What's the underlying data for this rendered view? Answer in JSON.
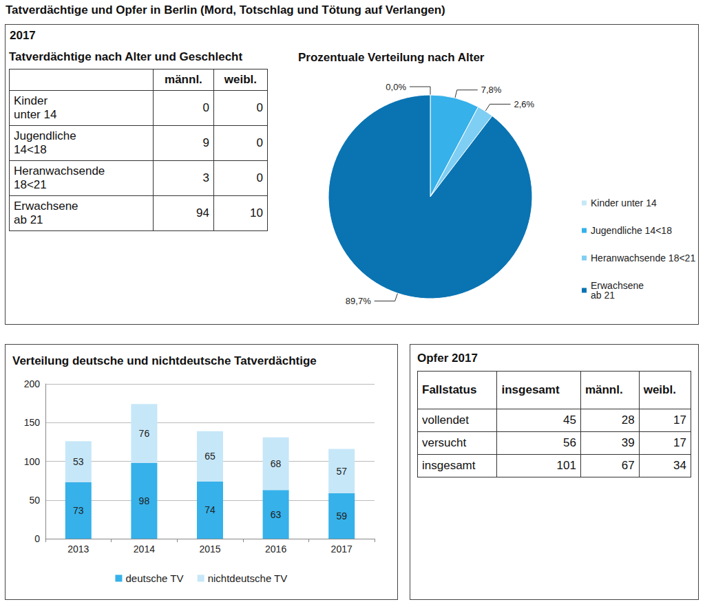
{
  "title": "Tatverdächtige und Opfer in Berlin (Mord, Totschlag und Tötung auf Verlangen)",
  "section_2017": {
    "year_label": "2017",
    "suspects_table": {
      "title": "Tatverdächtige nach Alter und Geschlecht",
      "columns": [
        "männl.",
        "weibl."
      ],
      "rows": [
        {
          "label": "Kinder\nunter 14",
          "values": [
            0,
            0
          ]
        },
        {
          "label": "Jugendliche\n14<18",
          "values": [
            9,
            0
          ]
        },
        {
          "label": "Heranwachsende\n18<21",
          "values": [
            3,
            0
          ]
        },
        {
          "label": "Erwachsene\nab 21",
          "values": [
            94,
            10
          ]
        }
      ]
    }
  },
  "chart_data": [
    {
      "type": "pie",
      "title": "Prozentuale Verteilung nach Alter",
      "categories": [
        "Kinder unter 14",
        "Jugendliche 14<18",
        "Heranwachsende 18<21",
        "Erwachsene\nab 21"
      ],
      "values": [
        0,
        7.8,
        2.6,
        89.7
      ],
      "value_labels": [
        "0,0%",
        "7,8%",
        "2,6%",
        "89,7%"
      ],
      "colors": [
        "#c6e7f8",
        "#36b1ea",
        "#7fcef3",
        "#0a74b3"
      ],
      "data_labels": true,
      "legend": "right"
    },
    {
      "type": "bar",
      "title": "Verteilung deutsche und nichtdeutsche Tatverdächtige",
      "categories": [
        "2013",
        "2014",
        "2015",
        "2016",
        "2017"
      ],
      "series": [
        {
          "name": "deutsche TV",
          "color": "#36b1ea",
          "values": [
            73,
            98,
            74,
            63,
            59
          ]
        },
        {
          "name": "nichtdeutsche TV",
          "color": "#c6e7f8",
          "values": [
            53,
            76,
            65,
            68,
            57
          ]
        }
      ],
      "stacked": true,
      "data_labels": true,
      "ylim": [
        0,
        200
      ],
      "yticks": [
        0,
        50,
        100,
        150,
        200
      ],
      "grid": true,
      "legend": "bottom"
    }
  ],
  "victims_table": {
    "title": "Opfer 2017",
    "columns": [
      "Fallstatus",
      "insgesamt",
      "männl.",
      "weibl."
    ],
    "rows": [
      [
        "vollendet",
        45,
        28,
        17
      ],
      [
        "versucht",
        56,
        39,
        17
      ],
      [
        "insgesamt",
        101,
        67,
        34
      ]
    ]
  }
}
